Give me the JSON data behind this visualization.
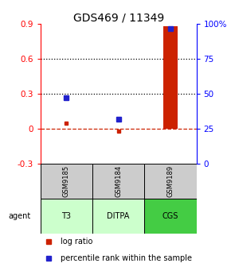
{
  "title": "GDS469 / 11349",
  "samples": [
    "GSM9185",
    "GSM9184",
    "GSM9189"
  ],
  "agents": [
    "T3",
    "DITPA",
    "CGS"
  ],
  "x_positions": [
    1,
    2,
    3
  ],
  "log_ratios": [
    0.05,
    -0.02,
    0.88
  ],
  "percentile_ranks": [
    0.47,
    0.32,
    0.97
  ],
  "bar_color": "#cc2200",
  "dot_color_red": "#cc2200",
  "dot_color_blue": "#2222cc",
  "left_ylim": [
    -0.3,
    0.9
  ],
  "right_ylim": [
    0,
    1.0
  ],
  "left_yticks": [
    -0.3,
    0.0,
    0.3,
    0.6,
    0.9
  ],
  "right_yticks": [
    0.0,
    0.25,
    0.5,
    0.75,
    1.0
  ],
  "right_yticklabels": [
    "0",
    "25",
    "50",
    "75",
    "100%"
  ],
  "left_yticklabels": [
    "-0.3",
    "0",
    "0.3",
    "0.6",
    "0.9"
  ],
  "hline_y": [
    0.3,
    0.6
  ],
  "dashed_hline_y": 0.0,
  "bg_color_main": "#ffffff",
  "bg_color_sample": "#cccccc",
  "agent_bg_colors": [
    "#ccffcc",
    "#ccffcc",
    "#44cc44"
  ],
  "legend_red_label": "log ratio",
  "legend_blue_label": "percentile rank within the sample",
  "agent_label": "agent",
  "title_fontsize": 10,
  "tick_fontsize": 7.5,
  "label_fontsize": 7
}
